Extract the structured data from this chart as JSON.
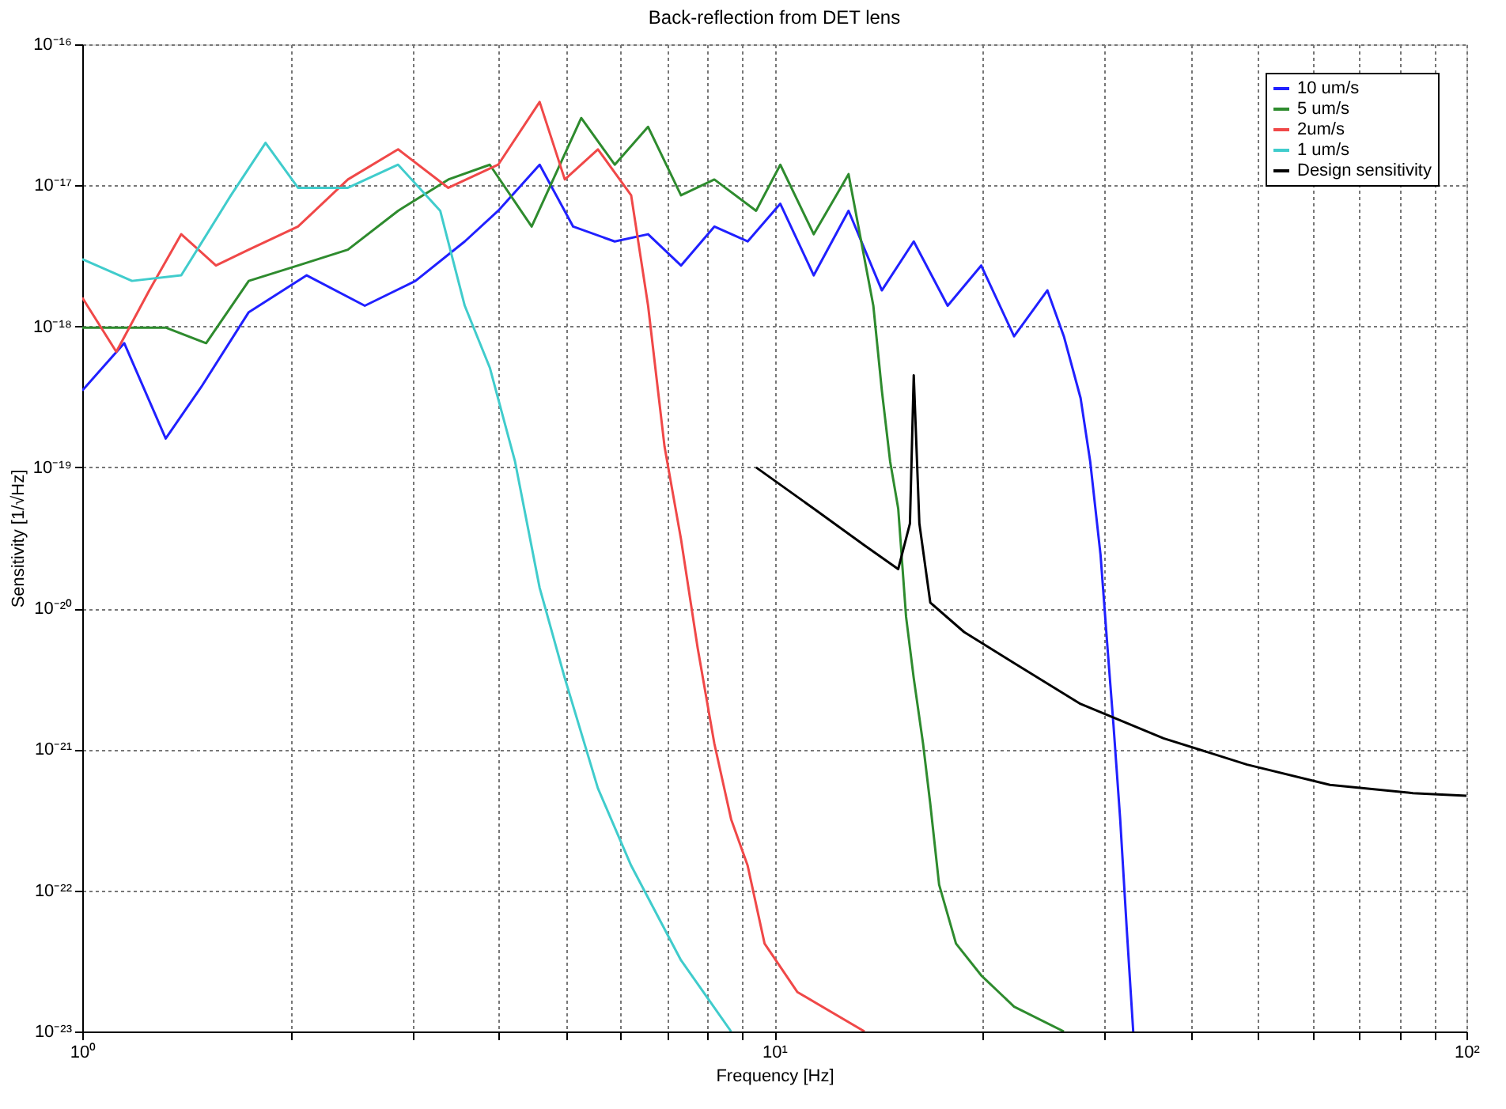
{
  "chart_data": {
    "type": "line",
    "title": "Back-reflection from DET lens",
    "xlabel": "Frequency [Hz]",
    "ylabel": "Sensitivity [1/√Hz]",
    "log": "xy",
    "grid": true,
    "legend": "top right",
    "marker": "none",
    "line_style": "solid",
    "xlim": [
      1,
      100
    ],
    "ylim": [
      1e-23,
      1e-16
    ],
    "xticks": [
      {
        "value": 1,
        "label": "10⁰"
      },
      {
        "value": 2,
        "label": null
      },
      {
        "value": 3,
        "label": null
      },
      {
        "value": 4,
        "label": null
      },
      {
        "value": 5,
        "label": null
      },
      {
        "value": 6,
        "label": null
      },
      {
        "value": 7,
        "label": null
      },
      {
        "value": 8,
        "label": null
      },
      {
        "value": 9,
        "label": null
      },
      {
        "value": 10,
        "label": "10¹"
      },
      {
        "value": 20,
        "label": null
      },
      {
        "value": 30,
        "label": null
      },
      {
        "value": 40,
        "label": null
      },
      {
        "value": 50,
        "label": null
      },
      {
        "value": 60,
        "label": null
      },
      {
        "value": 70,
        "label": null
      },
      {
        "value": 80,
        "label": null
      },
      {
        "value": 90,
        "label": null
      },
      {
        "value": 100,
        "label": "10²"
      }
    ],
    "yticks": [
      {
        "value": 1e-23,
        "label": "10⁻²³"
      },
      {
        "value": 1e-22,
        "label": "10⁻²²"
      },
      {
        "value": 1e-21,
        "label": "10⁻²¹"
      },
      {
        "value": 1e-20,
        "label": "10⁻²⁰"
      },
      {
        "value": 1e-19,
        "label": "10⁻¹⁹"
      },
      {
        "value": 1e-18,
        "label": "10⁻¹⁸"
      },
      {
        "value": 1e-17,
        "label": "10⁻¹⁷"
      },
      {
        "value": 1e-16,
        "label": "10⁻¹⁶"
      }
    ],
    "series": [
      {
        "name": "10 um/s",
        "color": "#2020ff",
        "x": [
          1,
          1.15,
          1.32,
          1.49,
          1.74,
          2.11,
          2.56,
          3.03,
          3.57,
          3.99,
          4.58,
          5.12,
          5.88,
          6.57,
          7.33,
          8.19,
          9.15,
          10.2,
          11.4,
          12.8,
          14.3,
          15.9,
          17.8,
          19.9,
          22.2,
          24.8,
          26.2,
          27.7,
          28.6,
          29.6,
          30.3,
          30.9,
          31.6,
          32.3,
          33.0
        ],
        "values": [
          3.5e-19,
          7.6e-19,
          1.6e-19,
          3.8e-19,
          1.26e-18,
          2.3e-18,
          1.4e-18,
          2.1e-18,
          4e-18,
          6.6e-18,
          1.4e-17,
          5.1e-18,
          4e-18,
          4.5e-18,
          2.7e-18,
          5.1e-18,
          4e-18,
          7.4e-18,
          2.3e-18,
          6.6e-18,
          1.8e-18,
          4e-18,
          1.4e-18,
          2.7e-18,
          8.5e-19,
          1.8e-18,
          8.5e-19,
          3.1e-19,
          1.1e-19,
          2.4e-20,
          5.2e-21,
          1.5e-21,
          3.2e-22,
          5.3e-23,
          1e-23
        ]
      },
      {
        "name": "5 um/s",
        "color": "#2e8b2e",
        "x": [
          1,
          1.32,
          1.51,
          1.74,
          2.05,
          2.42,
          2.86,
          3.38,
          3.88,
          4.46,
          5.26,
          5.88,
          6.57,
          7.33,
          8.19,
          9.41,
          10.2,
          11.4,
          12.8,
          13.9,
          14.3,
          14.7,
          15.1,
          15.5,
          15.9,
          16.4,
          16.8,
          17.3,
          18.3,
          19.9,
          22.2,
          26.2
        ],
        "values": [
          9.8e-19,
          9.8e-19,
          7.6e-19,
          2.1e-18,
          2.7e-18,
          3.5e-18,
          6.6e-18,
          1.1e-17,
          1.4e-17,
          5.1e-18,
          3e-17,
          1.4e-17,
          2.6e-17,
          8.5e-18,
          1.1e-17,
          6.6e-18,
          1.4e-17,
          4.5e-18,
          1.2e-17,
          1.4e-18,
          3.5e-19,
          1.1e-19,
          5.1e-20,
          8.7e-21,
          3.2e-21,
          1.1e-21,
          4.1e-22,
          1.1e-22,
          4.2e-23,
          2.5e-23,
          1.5e-23,
          1e-23
        ]
      },
      {
        "name": "2um/s",
        "color": "#f04848",
        "x": [
          1,
          1.12,
          1.25,
          1.39,
          1.56,
          1.74,
          2.05,
          2.42,
          2.86,
          3.38,
          3.99,
          4.58,
          4.98,
          5.56,
          6.21,
          6.57,
          6.94,
          7.33,
          7.75,
          8.19,
          8.66,
          9.15,
          9.68,
          10.8,
          13.5
        ],
        "values": [
          1.6e-18,
          6.6e-19,
          1.8e-18,
          4.5e-18,
          2.7e-18,
          3.5e-18,
          5.1e-18,
          1.1e-17,
          1.8e-17,
          9.6e-18,
          1.4e-17,
          3.9e-17,
          1.1e-17,
          1.8e-17,
          8.5e-18,
          1.4e-18,
          1.4e-19,
          3.1e-20,
          5.2e-21,
          1.1e-21,
          3.2e-22,
          1.5e-22,
          4.2e-23,
          1.9e-23,
          1e-23
        ]
      },
      {
        "name": "1 um/s",
        "color": "#40cccc",
        "x": [
          1,
          1.18,
          1.39,
          1.64,
          1.84,
          2.05,
          2.42,
          2.86,
          3.29,
          3.57,
          3.88,
          4.22,
          4.58,
          4.98,
          5.56,
          6.21,
          7.33,
          8.66
        ],
        "values": [
          3e-18,
          2.1e-18,
          2.3e-18,
          8.5e-18,
          2e-17,
          9.6e-18,
          9.6e-18,
          1.4e-17,
          6.6e-18,
          1.4e-18,
          5.1e-19,
          1.1e-19,
          1.4e-20,
          3.2e-21,
          5.3e-22,
          1.5e-22,
          3.2e-23,
          1e-23
        ]
      },
      {
        "name": "Design sensitivity",
        "color": "#000000",
        "x": [
          9.41,
          11.4,
          13.5,
          15.1,
          15.7,
          15.9,
          16.2,
          16.8,
          18.8,
          22.2,
          27.7,
          36.5,
          48.2,
          63.5,
          83.7,
          100
        ],
        "values": [
          1e-19,
          5.1e-20,
          2.8e-20,
          1.9e-20,
          4e-20,
          4.5e-19,
          4e-20,
          1.1e-20,
          6.8e-21,
          4.1e-21,
          2.1e-21,
          1.2e-21,
          7.8e-22,
          5.6e-22,
          4.9e-22,
          4.7e-22
        ]
      }
    ]
  }
}
